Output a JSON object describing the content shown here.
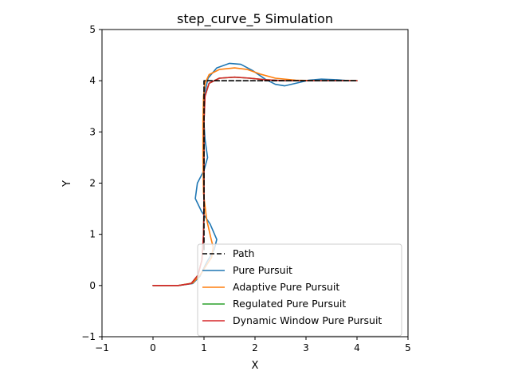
{
  "chart_data": {
    "type": "line",
    "title": "step_curve_5 Simulation",
    "xlabel": "X",
    "ylabel": "Y",
    "xlim": [
      -1,
      5
    ],
    "ylim": [
      -1,
      5
    ],
    "xticks": [
      -1,
      0,
      1,
      2,
      3,
      4,
      5
    ],
    "yticks": [
      -1,
      0,
      1,
      2,
      3,
      4,
      5
    ],
    "xtick_labels": [
      "−1",
      "0",
      "1",
      "2",
      "3",
      "4",
      "5"
    ],
    "ytick_labels": [
      "−1",
      "0",
      "1",
      "2",
      "3",
      "4",
      "5"
    ],
    "grid": false,
    "legend_position": "lower-right",
    "series": [
      {
        "name": "Path",
        "color": "#000000",
        "dashed": true,
        "x": [
          1.0,
          1.0,
          1.0,
          2.0,
          3.0,
          4.0
        ],
        "y": [
          0.7,
          1.5,
          4.0,
          4.0,
          4.0,
          4.0
        ]
      },
      {
        "name": "Pure Pursuit",
        "color": "#1f77b4",
        "dashed": false,
        "x": [
          0.0,
          0.5,
          0.78,
          0.92,
          1.05,
          1.2,
          1.25,
          1.12,
          0.95,
          0.83,
          0.87,
          1.0,
          1.07,
          1.02,
          0.99,
          1.0,
          1.08,
          1.25,
          1.5,
          1.72,
          1.95,
          2.2,
          2.4,
          2.58,
          2.8,
          3.05,
          3.3,
          3.6,
          3.85,
          4.0
        ],
        "y": [
          0.0,
          0.0,
          0.04,
          0.18,
          0.45,
          0.7,
          0.9,
          1.2,
          1.45,
          1.7,
          2.0,
          2.25,
          2.5,
          2.85,
          3.3,
          3.7,
          4.05,
          4.25,
          4.34,
          4.32,
          4.2,
          4.03,
          3.93,
          3.9,
          3.95,
          4.01,
          4.03,
          4.02,
          4.0,
          4.0
        ]
      },
      {
        "name": "Adaptive Pure Pursuit",
        "color": "#ff7f0e",
        "dashed": false,
        "x": [
          0.0,
          0.5,
          0.78,
          0.92,
          1.05,
          1.15,
          1.18,
          1.13,
          1.05,
          0.99,
          0.98,
          0.98,
          0.99,
          1.02,
          1.1,
          1.3,
          1.6,
          1.85,
          2.1,
          2.4,
          2.8,
          3.2,
          3.6,
          4.0
        ],
        "y": [
          0.0,
          0.0,
          0.05,
          0.2,
          0.4,
          0.55,
          0.75,
          0.95,
          1.3,
          1.8,
          2.5,
          3.2,
          3.7,
          3.95,
          4.12,
          4.22,
          4.25,
          4.22,
          4.13,
          4.05,
          4.01,
          4.0,
          4.0,
          4.0
        ]
      },
      {
        "name": "Regulated Pure Pursuit",
        "color": "#2ca02c",
        "dashed": false,
        "x": [
          0.0,
          0.5,
          0.75,
          0.88,
          0.96,
          0.99,
          1.0,
          1.0,
          1.0,
          1.02,
          1.1,
          1.3,
          1.6,
          1.9,
          2.2,
          2.6,
          3.0,
          3.5,
          4.0
        ],
        "y": [
          0.0,
          0.0,
          0.04,
          0.2,
          0.5,
          1.0,
          1.6,
          2.4,
          3.2,
          3.7,
          3.95,
          4.05,
          4.07,
          4.05,
          4.02,
          4.0,
          4.0,
          4.0,
          4.0
        ]
      },
      {
        "name": "Dynamic Window Pure Pursuit",
        "color": "#d62728",
        "dashed": false,
        "x": [
          0.0,
          0.5,
          0.75,
          0.88,
          0.96,
          0.99,
          1.0,
          1.0,
          1.0,
          1.02,
          1.1,
          1.3,
          1.6,
          1.9,
          2.2,
          2.6,
          3.0,
          3.5,
          4.0
        ],
        "y": [
          0.0,
          0.0,
          0.04,
          0.2,
          0.5,
          1.0,
          1.6,
          2.4,
          3.2,
          3.7,
          3.95,
          4.05,
          4.07,
          4.05,
          4.02,
          4.0,
          4.0,
          4.0,
          4.0
        ]
      }
    ]
  }
}
